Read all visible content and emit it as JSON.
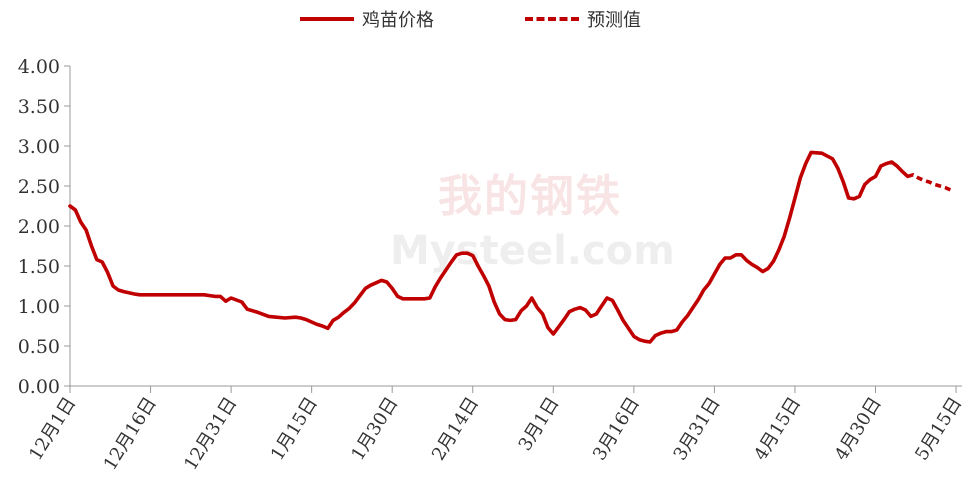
{
  "legend": {
    "solid_label": "鸡苗价格",
    "dashed_label": "预测值"
  },
  "watermark": {
    "top_text": "我的钢铁",
    "bottom_text": "Mysteel.com"
  },
  "colors": {
    "series": "#c00000",
    "axis": "#999999",
    "text": "#333333"
  },
  "chart_data": {
    "type": "line",
    "title": "",
    "xlabel": "",
    "ylabel": "",
    "ylim": [
      0,
      4
    ],
    "y_ticks": [
      "0.00",
      "0.50",
      "1.00",
      "1.50",
      "2.00",
      "2.50",
      "3.00",
      "3.50",
      "4.00"
    ],
    "x_ticks": [
      "12月1日",
      "12月16日",
      "12月31日",
      "1月15日",
      "1月30日",
      "2月14日",
      "3月1日",
      "3月16日",
      "3月31日",
      "4月15日",
      "4月30日",
      "5月15日"
    ],
    "grid": false,
    "legend_position": "top-center",
    "series": [
      {
        "name": "鸡苗价格",
        "style": "solid",
        "points": [
          [
            0,
            2.25
          ],
          [
            1,
            2.2
          ],
          [
            2,
            2.05
          ],
          [
            3,
            1.95
          ],
          [
            4,
            1.75
          ],
          [
            5,
            1.58
          ],
          [
            6,
            1.55
          ],
          [
            7,
            1.42
          ],
          [
            8,
            1.25
          ],
          [
            9,
            1.2
          ],
          [
            10,
            1.18
          ],
          [
            12,
            1.15
          ],
          [
            13,
            1.14
          ],
          [
            15,
            1.14
          ],
          [
            20,
            1.14
          ],
          [
            25,
            1.14
          ],
          [
            26,
            1.13
          ],
          [
            27,
            1.12
          ],
          [
            28,
            1.12
          ],
          [
            29,
            1.06
          ],
          [
            30,
            1.1
          ],
          [
            32,
            1.05
          ],
          [
            33,
            0.96
          ],
          [
            35,
            0.92
          ],
          [
            37,
            0.87
          ],
          [
            40,
            0.85
          ],
          [
            42,
            0.86
          ],
          [
            43,
            0.85
          ],
          [
            44,
            0.83
          ],
          [
            45,
            0.8
          ],
          [
            46,
            0.77
          ],
          [
            47,
            0.75
          ],
          [
            48,
            0.72
          ],
          [
            49,
            0.82
          ],
          [
            50,
            0.86
          ],
          [
            51,
            0.92
          ],
          [
            52,
            0.97
          ],
          [
            53,
            1.04
          ],
          [
            54,
            1.13
          ],
          [
            55,
            1.22
          ],
          [
            56,
            1.26
          ],
          [
            57,
            1.29
          ],
          [
            58,
            1.32
          ],
          [
            59,
            1.3
          ],
          [
            60,
            1.22
          ],
          [
            61,
            1.12
          ],
          [
            62,
            1.09
          ],
          [
            63,
            1.09
          ],
          [
            64,
            1.09
          ],
          [
            65,
            1.09
          ],
          [
            66,
            1.09
          ],
          [
            67,
            1.1
          ],
          [
            68,
            1.24
          ],
          [
            69,
            1.35
          ],
          [
            70,
            1.45
          ],
          [
            71,
            1.55
          ],
          [
            72,
            1.64
          ],
          [
            73,
            1.66
          ],
          [
            74,
            1.66
          ],
          [
            75,
            1.63
          ],
          [
            76,
            1.5
          ],
          [
            77,
            1.38
          ],
          [
            78,
            1.25
          ],
          [
            79,
            1.05
          ],
          [
            80,
            0.9
          ],
          [
            81,
            0.83
          ],
          [
            82,
            0.82
          ],
          [
            83,
            0.83
          ],
          [
            84,
            0.94
          ],
          [
            85,
            1.0
          ],
          [
            86,
            1.1
          ],
          [
            87,
            0.98
          ],
          [
            88,
            0.9
          ],
          [
            89,
            0.73
          ],
          [
            90,
            0.65
          ],
          [
            91,
            0.74
          ],
          [
            92,
            0.83
          ],
          [
            93,
            0.93
          ],
          [
            94,
            0.96
          ],
          [
            95,
            0.98
          ],
          [
            96,
            0.95
          ],
          [
            97,
            0.87
          ],
          [
            98,
            0.9
          ],
          [
            99,
            1.0
          ],
          [
            100,
            1.1
          ],
          [
            101,
            1.07
          ],
          [
            102,
            0.95
          ],
          [
            103,
            0.82
          ],
          [
            104,
            0.72
          ],
          [
            105,
            0.62
          ],
          [
            106,
            0.58
          ],
          [
            107,
            0.56
          ],
          [
            108,
            0.55
          ],
          [
            109,
            0.63
          ],
          [
            110,
            0.66
          ],
          [
            111,
            0.68
          ],
          [
            112,
            0.68
          ],
          [
            113,
            0.7
          ],
          [
            114,
            0.8
          ],
          [
            115,
            0.88
          ],
          [
            116,
            0.98
          ],
          [
            117,
            1.08
          ],
          [
            118,
            1.2
          ],
          [
            119,
            1.28
          ],
          [
            120,
            1.4
          ],
          [
            121,
            1.52
          ],
          [
            122,
            1.6
          ],
          [
            123,
            1.6
          ],
          [
            124,
            1.64
          ],
          [
            125,
            1.64
          ],
          [
            126,
            1.57
          ],
          [
            127,
            1.52
          ],
          [
            128,
            1.48
          ],
          [
            129,
            1.43
          ],
          [
            130,
            1.47
          ],
          [
            131,
            1.56
          ],
          [
            132,
            1.7
          ],
          [
            133,
            1.87
          ],
          [
            134,
            2.1
          ],
          [
            135,
            2.35
          ],
          [
            136,
            2.6
          ],
          [
            137,
            2.78
          ],
          [
            138,
            2.92
          ],
          [
            140,
            2.91
          ],
          [
            142,
            2.84
          ],
          [
            143,
            2.72
          ],
          [
            144,
            2.55
          ],
          [
            145,
            2.35
          ],
          [
            146,
            2.34
          ],
          [
            147,
            2.37
          ],
          [
            148,
            2.52
          ],
          [
            149,
            2.58
          ],
          [
            150,
            2.62
          ],
          [
            151,
            2.75
          ],
          [
            152,
            2.78
          ],
          [
            153,
            2.8
          ],
          [
            154,
            2.75
          ],
          [
            155,
            2.68
          ],
          [
            156,
            2.62
          ]
        ]
      },
      {
        "name": "预测值",
        "style": "dashed",
        "points": [
          [
            156,
            2.62
          ],
          [
            157,
            2.64
          ],
          [
            158,
            2.6
          ],
          [
            159,
            2.57
          ],
          [
            160,
            2.55
          ],
          [
            161,
            2.52
          ],
          [
            162,
            2.5
          ],
          [
            163,
            2.48
          ],
          [
            164,
            2.45
          ]
        ]
      }
    ]
  }
}
